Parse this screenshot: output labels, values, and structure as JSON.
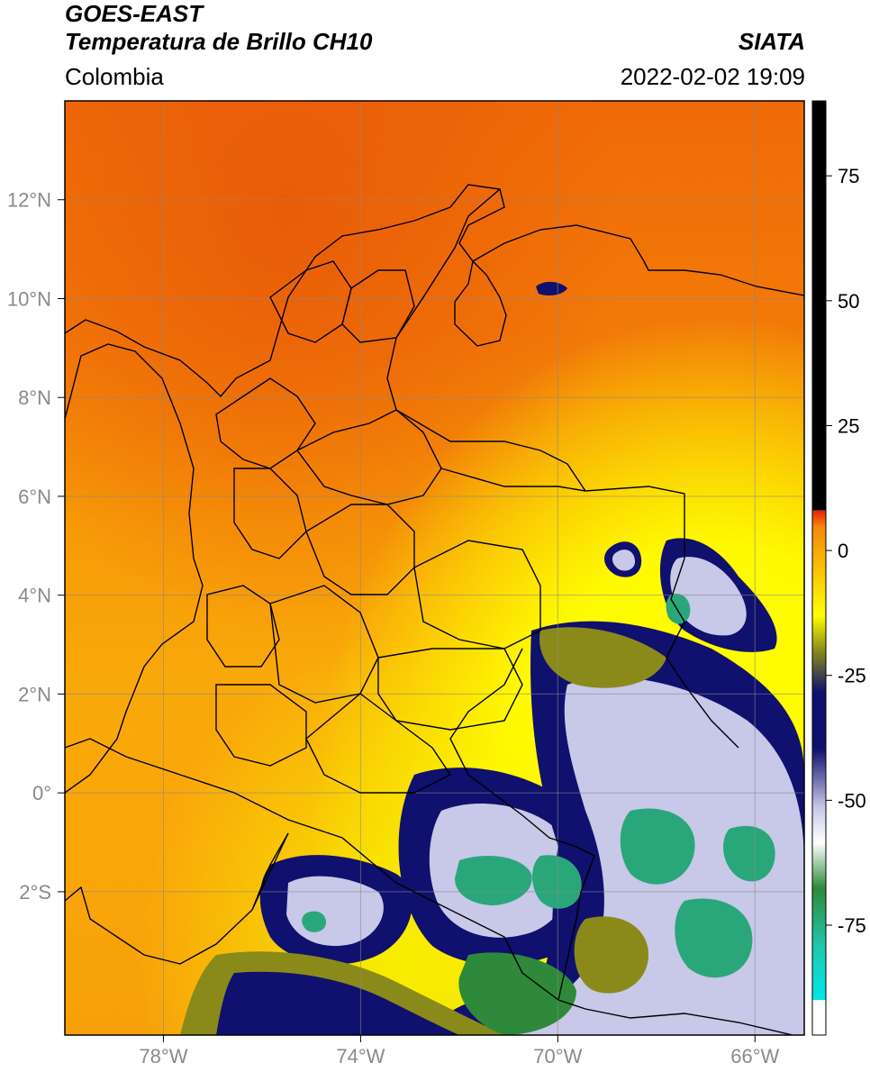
{
  "header": {
    "satellite": "GOES-EAST",
    "product": "Temperatura de Brillo CH10",
    "region": "Colombia",
    "agency": "SIATA",
    "datetime": "2022-02-02 19:09"
  },
  "map": {
    "lon_min": -80.0,
    "lon_max": -65.0,
    "lat_min": -4.9,
    "lat_max": 14.0,
    "lat_ticks": [
      {
        "value": 12,
        "label": "12°N"
      },
      {
        "value": 10,
        "label": "10°N"
      },
      {
        "value": 8,
        "label": "8°N"
      },
      {
        "value": 6,
        "label": "6°N"
      },
      {
        "value": 4,
        "label": "4°N"
      },
      {
        "value": 2,
        "label": "2°N"
      },
      {
        "value": 0,
        "label": "0°"
      },
      {
        "value": -2,
        "label": "2°S"
      }
    ],
    "lon_ticks": [
      {
        "value": -78,
        "label": "78°W"
      },
      {
        "value": -74,
        "label": "74°W"
      },
      {
        "value": -70,
        "label": "70°W"
      },
      {
        "value": -66,
        "label": "66°W"
      }
    ]
  },
  "colorbar": {
    "min": -97,
    "max": 90,
    "ticks": [
      {
        "value": 75,
        "label": "75"
      },
      {
        "value": 50,
        "label": "50"
      },
      {
        "value": 25,
        "label": "25"
      },
      {
        "value": 0,
        "label": "0"
      },
      {
        "value": -25,
        "label": "-25"
      },
      {
        "value": -50,
        "label": "-50"
      },
      {
        "value": -75,
        "label": "-75"
      }
    ],
    "colors": {
      "hot": "#000000",
      "red": "#e8200a",
      "orange": "#f58a0a",
      "yellow": "#ffff00",
      "olive": "#8a8a1a",
      "navy": "#10106e",
      "lavender": "#c8c8e8",
      "green": "#2e8a3a",
      "teal": "#20c8b0",
      "cyan": "#00e8e8"
    }
  }
}
